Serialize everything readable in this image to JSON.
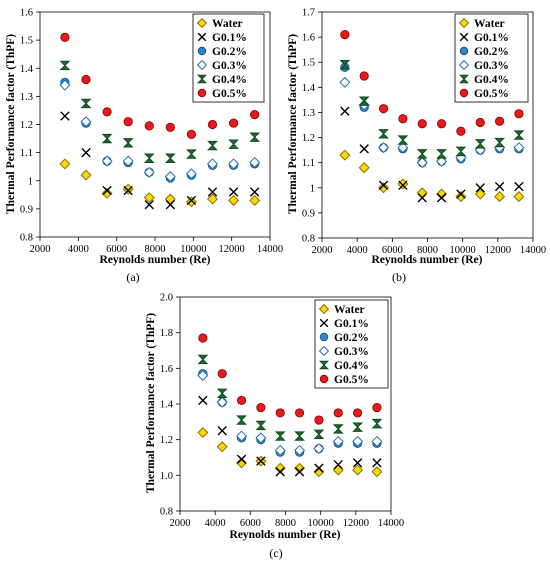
{
  "chart_data": [
    {
      "type": "scatter",
      "panel_label": "(a)",
      "xlabel": "Reynolds number (Re)",
      "ylabel": "Thermal Performance factor (ThPF)",
      "xlim": [
        2000,
        14000
      ],
      "ylim": [
        0.8,
        1.6
      ],
      "xticks": [
        "2000",
        "4000",
        "6000",
        "8000",
        "10000",
        "12000",
        "14000"
      ],
      "yticks": [
        "0.8",
        "0.9",
        "1",
        "1.1",
        "1.2",
        "1.3",
        "1.4",
        "1.5",
        "1.6"
      ],
      "grid": false,
      "legend_position": "top-right",
      "x": [
        3300,
        4400,
        5500,
        6600,
        7700,
        8800,
        9900,
        11000,
        12100,
        13200
      ],
      "series": [
        {
          "name": "Water",
          "marker": "diamond-yellow",
          "values": [
            1.06,
            1.02,
            0.955,
            0.97,
            0.94,
            0.935,
            0.925,
            0.935,
            0.93,
            0.93
          ]
        },
        {
          "name": "G0.1%",
          "marker": "cross-black",
          "values": [
            1.23,
            1.1,
            0.965,
            0.965,
            0.915,
            0.915,
            0.93,
            0.96,
            0.96,
            0.96
          ]
        },
        {
          "name": "G0.2%",
          "marker": "circle-blue",
          "values": [
            1.35,
            1.205,
            1.07,
            1.065,
            1.03,
            1.01,
            1.02,
            1.055,
            1.055,
            1.06
          ]
        },
        {
          "name": "G0.3%",
          "marker": "diamond-white",
          "values": [
            1.34,
            1.21,
            1.07,
            1.07,
            1.03,
            1.015,
            1.025,
            1.06,
            1.06,
            1.065
          ]
        },
        {
          "name": "G0.4%",
          "marker": "bowtie-green",
          "values": [
            1.41,
            1.275,
            1.15,
            1.135,
            1.08,
            1.08,
            1.095,
            1.125,
            1.13,
            1.155
          ]
        },
        {
          "name": "G0.5%",
          "marker": "circle-red",
          "values": [
            1.51,
            1.36,
            1.245,
            1.21,
            1.195,
            1.19,
            1.165,
            1.2,
            1.205,
            1.235
          ]
        }
      ]
    },
    {
      "type": "scatter",
      "panel_label": "(b)",
      "xlabel": "Reynolds number (Re)",
      "ylabel": "Thermal Performance factor (ThPF)",
      "xlim": [
        2000,
        14000
      ],
      "ylim": [
        0.8,
        1.7
      ],
      "xticks": [
        "2000",
        "4000",
        "6000",
        "8000",
        "10000",
        "12000",
        "14000"
      ],
      "yticks": [
        "0.8",
        "0.9",
        "1",
        "1.1",
        "1.2",
        "1.3",
        "1.4",
        "1.5",
        "1.6",
        "1.7"
      ],
      "grid": false,
      "legend_position": "top-right",
      "x": [
        3300,
        4400,
        5500,
        6600,
        7700,
        8800,
        9900,
        11000,
        12100,
        13200
      ],
      "series": [
        {
          "name": "Water",
          "marker": "diamond-yellow",
          "values": [
            1.13,
            1.08,
            1.0,
            1.015,
            0.98,
            0.975,
            0.965,
            0.975,
            0.965,
            0.965
          ]
        },
        {
          "name": "G0.1%",
          "marker": "cross-black",
          "values": [
            1.305,
            1.155,
            1.01,
            1.01,
            0.96,
            0.96,
            0.975,
            1.0,
            1.005,
            1.005
          ]
        },
        {
          "name": "G0.2%",
          "marker": "circle-blue",
          "values": [
            1.48,
            1.32,
            1.16,
            1.155,
            1.1,
            1.105,
            1.115,
            1.15,
            1.155,
            1.155
          ]
        },
        {
          "name": "G0.3%",
          "marker": "diamond-white",
          "values": [
            1.42,
            1.33,
            1.16,
            1.16,
            1.1,
            1.105,
            1.12,
            1.15,
            1.16,
            1.16
          ]
        },
        {
          "name": "G0.4%",
          "marker": "bowtie-green",
          "values": [
            1.49,
            1.345,
            1.215,
            1.19,
            1.135,
            1.135,
            1.145,
            1.175,
            1.18,
            1.21
          ]
        },
        {
          "name": "G0.5%",
          "marker": "circle-red",
          "values": [
            1.61,
            1.445,
            1.315,
            1.275,
            1.255,
            1.255,
            1.225,
            1.26,
            1.265,
            1.295
          ]
        }
      ]
    },
    {
      "type": "scatter",
      "panel_label": "(c)",
      "xlabel": "Reynolds number (Re)",
      "ylabel": "Thermal Performance factor (ThPF)",
      "xlim": [
        2000,
        14000
      ],
      "ylim": [
        0.8,
        2.0
      ],
      "xticks": [
        "2000",
        "4000",
        "6000",
        "8000",
        "10000",
        "12000",
        "14000"
      ],
      "yticks": [
        "0.8",
        "1.0",
        "1.2",
        "1.4",
        "1.6",
        "1.8",
        "2.0"
      ],
      "grid": false,
      "legend_position": "top-right",
      "x": [
        3300,
        4400,
        5500,
        6600,
        7700,
        8800,
        9900,
        11000,
        12100,
        13200
      ],
      "series": [
        {
          "name": "Water",
          "marker": "diamond-yellow",
          "values": [
            1.24,
            1.16,
            1.07,
            1.08,
            1.04,
            1.04,
            1.02,
            1.03,
            1.03,
            1.02
          ]
        },
        {
          "name": "G0.1%",
          "marker": "cross-black",
          "values": [
            1.42,
            1.25,
            1.09,
            1.08,
            1.02,
            1.02,
            1.04,
            1.06,
            1.07,
            1.07
          ]
        },
        {
          "name": "G0.2%",
          "marker": "circle-blue",
          "values": [
            1.57,
            1.41,
            1.21,
            1.2,
            1.13,
            1.13,
            1.15,
            1.18,
            1.18,
            1.18
          ]
        },
        {
          "name": "G0.3%",
          "marker": "diamond-white",
          "values": [
            1.56,
            1.41,
            1.22,
            1.21,
            1.14,
            1.14,
            1.15,
            1.19,
            1.19,
            1.19
          ]
        },
        {
          "name": "G0.4%",
          "marker": "bowtie-green",
          "values": [
            1.65,
            1.46,
            1.31,
            1.28,
            1.22,
            1.22,
            1.23,
            1.26,
            1.27,
            1.29
          ]
        },
        {
          "name": "G0.5%",
          "marker": "circle-red",
          "values": [
            1.77,
            1.57,
            1.42,
            1.38,
            1.35,
            1.35,
            1.31,
            1.35,
            1.35,
            1.38
          ]
        }
      ]
    }
  ],
  "marker_styles": {
    "diamond-yellow": {
      "fill": "#ffd700",
      "stroke": "#8a7000"
    },
    "cross-black": {
      "fill": "none",
      "stroke": "#000000"
    },
    "circle-blue": {
      "fill": "#2e86c8",
      "stroke": "#0d4f80"
    },
    "diamond-white": {
      "fill": "#ffffff",
      "stroke": "#1f6fb2"
    },
    "bowtie-green": {
      "fill": "#1e6b2e",
      "stroke": "#0f4a1c"
    },
    "circle-red": {
      "fill": "#e41a1c",
      "stroke": "#8b0000"
    }
  }
}
